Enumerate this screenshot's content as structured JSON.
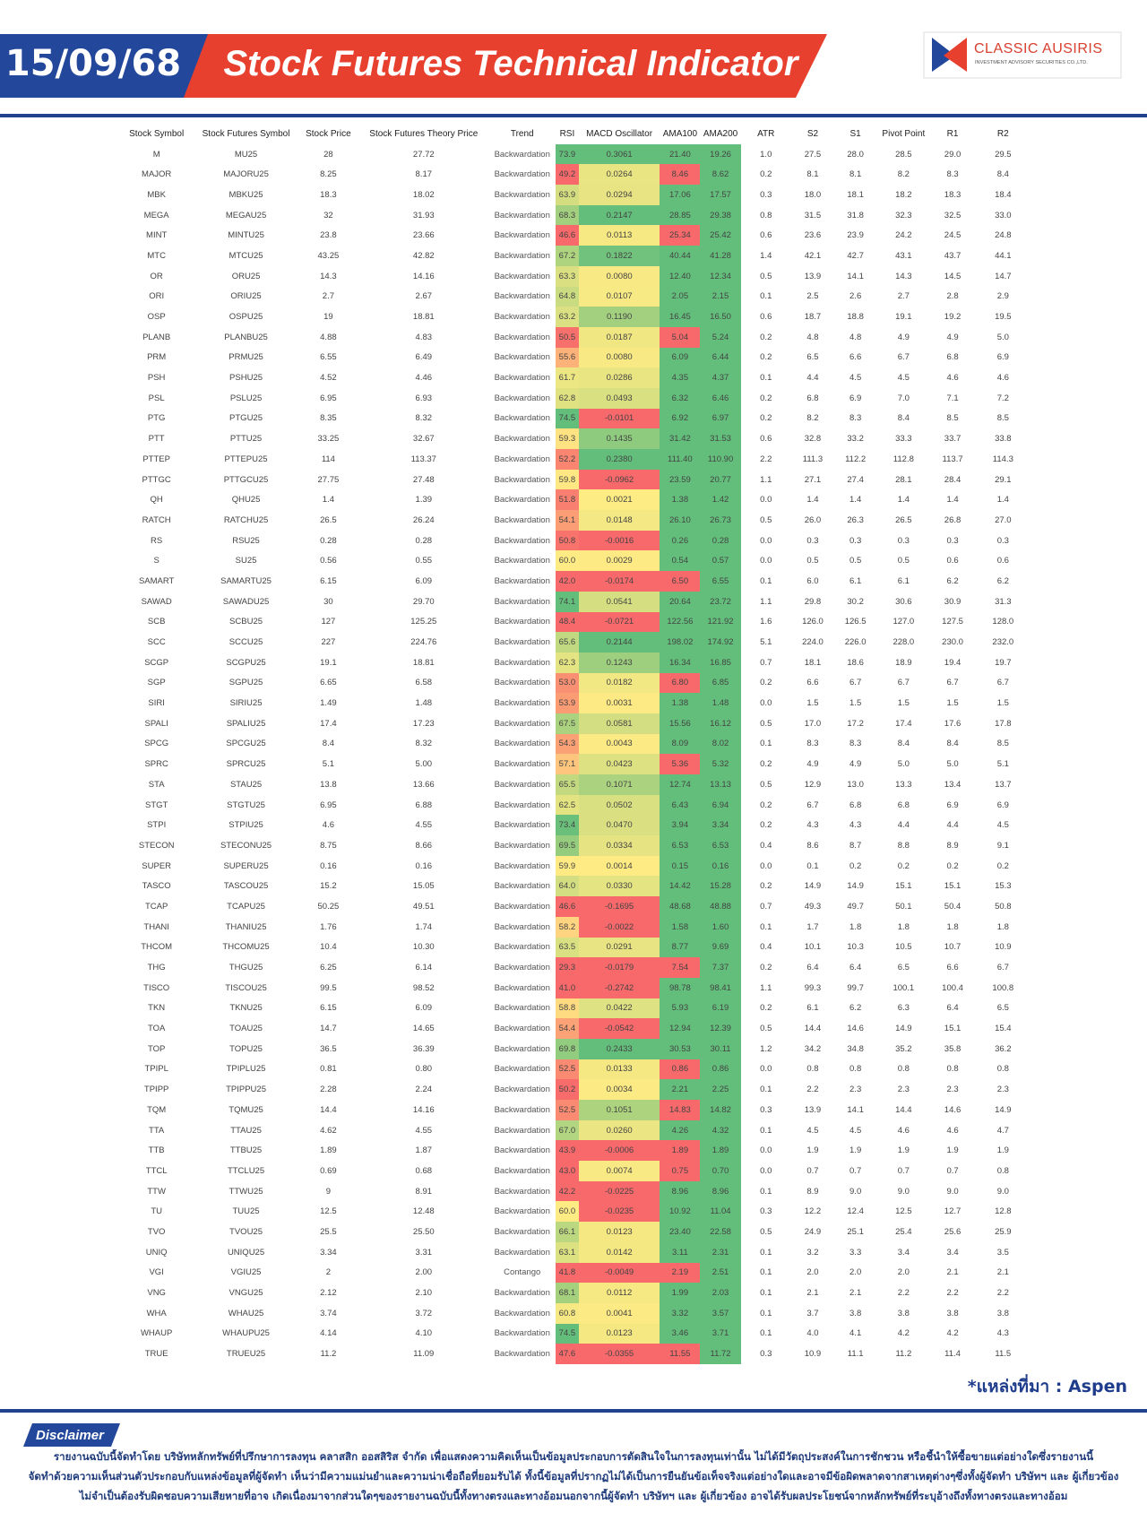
{
  "header": {
    "date": "15/09/68",
    "title": "Stock Futures Technical Indicator",
    "logo_name": "CLASSIC AUSIRIS",
    "logo_sub": "INVESTMENT ADVISORY SECURITIES CO.,LTD."
  },
  "table": {
    "columns": [
      "Stock Symbol",
      "Stock Futures Symbol",
      "Stock Price",
      "Stock Futures Theory Price",
      "Trend",
      "RSI",
      "MACD Oscillator",
      "AMA100",
      "AMA200",
      "ATR",
      "S2",
      "S1",
      "Pivot Point",
      "R1",
      "R2"
    ],
    "rows": [
      [
        "M",
        "MU25",
        "28",
        "27.72",
        "Backwardation",
        "73.9",
        "0.3061",
        "21.40",
        "19.26",
        "1.0",
        "27.5",
        "28.0",
        "28.5",
        "29.0",
        "29.5"
      ],
      [
        "MAJOR",
        "MAJORU25",
        "8.25",
        "8.17",
        "Backwardation",
        "49.2",
        "0.0264",
        "8.46",
        "8.62",
        "0.2",
        "8.1",
        "8.1",
        "8.2",
        "8.3",
        "8.4"
      ],
      [
        "MBK",
        "MBKU25",
        "18.3",
        "18.02",
        "Backwardation",
        "63.9",
        "0.0294",
        "17.06",
        "17.57",
        "0.3",
        "18.0",
        "18.1",
        "18.2",
        "18.3",
        "18.4"
      ],
      [
        "MEGA",
        "MEGAU25",
        "32",
        "31.93",
        "Backwardation",
        "68.3",
        "0.2147",
        "28.85",
        "29.38",
        "0.8",
        "31.5",
        "31.8",
        "32.3",
        "32.5",
        "33.0"
      ],
      [
        "MINT",
        "MINTU25",
        "23.8",
        "23.66",
        "Backwardation",
        "46.6",
        "0.0113",
        "25.34",
        "25.42",
        "0.6",
        "23.6",
        "23.9",
        "24.2",
        "24.5",
        "24.8"
      ],
      [
        "MTC",
        "MTCU25",
        "43.25",
        "42.82",
        "Backwardation",
        "67.2",
        "0.1822",
        "40.44",
        "41.28",
        "1.4",
        "42.1",
        "42.7",
        "43.1",
        "43.7",
        "44.1"
      ],
      [
        "OR",
        "ORU25",
        "14.3",
        "14.16",
        "Backwardation",
        "63.3",
        "0.0080",
        "12.40",
        "12.34",
        "0.5",
        "13.9",
        "14.1",
        "14.3",
        "14.5",
        "14.7"
      ],
      [
        "ORI",
        "ORIU25",
        "2.7",
        "2.67",
        "Backwardation",
        "64.8",
        "0.0107",
        "2.05",
        "2.15",
        "0.1",
        "2.5",
        "2.6",
        "2.7",
        "2.8",
        "2.9"
      ],
      [
        "OSP",
        "OSPU25",
        "19",
        "18.81",
        "Backwardation",
        "63.2",
        "0.1190",
        "16.45",
        "16.50",
        "0.6",
        "18.7",
        "18.8",
        "19.1",
        "19.2",
        "19.5"
      ],
      [
        "PLANB",
        "PLANBU25",
        "4.88",
        "4.83",
        "Backwardation",
        "50.5",
        "0.0187",
        "5.04",
        "5.24",
        "0.2",
        "4.8",
        "4.8",
        "4.9",
        "4.9",
        "5.0"
      ],
      [
        "PRM",
        "PRMU25",
        "6.55",
        "6.49",
        "Backwardation",
        "55.6",
        "0.0080",
        "6.09",
        "6.44",
        "0.2",
        "6.5",
        "6.6",
        "6.7",
        "6.8",
        "6.9"
      ],
      [
        "PSH",
        "PSHU25",
        "4.52",
        "4.46",
        "Backwardation",
        "61.7",
        "0.0286",
        "4.35",
        "4.37",
        "0.1",
        "4.4",
        "4.5",
        "4.5",
        "4.6",
        "4.6"
      ],
      [
        "PSL",
        "PSLU25",
        "6.95",
        "6.93",
        "Backwardation",
        "62.8",
        "0.0493",
        "6.32",
        "6.46",
        "0.2",
        "6.8",
        "6.9",
        "7.0",
        "7.1",
        "7.2"
      ],
      [
        "PTG",
        "PTGU25",
        "8.35",
        "8.32",
        "Backwardation",
        "74.5",
        "-0.0101",
        "6.92",
        "6.97",
        "0.2",
        "8.2",
        "8.3",
        "8.4",
        "8.5",
        "8.5"
      ],
      [
        "PTT",
        "PTTU25",
        "33.25",
        "32.67",
        "Backwardation",
        "59.3",
        "0.1435",
        "31.42",
        "31.53",
        "0.6",
        "32.8",
        "33.2",
        "33.3",
        "33.7",
        "33.8"
      ],
      [
        "PTTEP",
        "PTTEPU25",
        "114",
        "113.37",
        "Backwardation",
        "52.2",
        "0.2380",
        "111.40",
        "110.90",
        "2.2",
        "111.3",
        "112.2",
        "112.8",
        "113.7",
        "114.3"
      ],
      [
        "PTTGC",
        "PTTGCU25",
        "27.75",
        "27.48",
        "Backwardation",
        "59.8",
        "-0.0962",
        "23.59",
        "20.77",
        "1.1",
        "27.1",
        "27.4",
        "28.1",
        "28.4",
        "29.1"
      ],
      [
        "QH",
        "QHU25",
        "1.4",
        "1.39",
        "Backwardation",
        "51.8",
        "0.0021",
        "1.38",
        "1.42",
        "0.0",
        "1.4",
        "1.4",
        "1.4",
        "1.4",
        "1.4"
      ],
      [
        "RATCH",
        "RATCHU25",
        "26.5",
        "26.24",
        "Backwardation",
        "54.1",
        "0.0148",
        "26.10",
        "26.73",
        "0.5",
        "26.0",
        "26.3",
        "26.5",
        "26.8",
        "27.0"
      ],
      [
        "RS",
        "RSU25",
        "0.28",
        "0.28",
        "Backwardation",
        "50.8",
        "-0.0016",
        "0.26",
        "0.28",
        "0.0",
        "0.3",
        "0.3",
        "0.3",
        "0.3",
        "0.3"
      ],
      [
        "S",
        "SU25",
        "0.56",
        "0.55",
        "Backwardation",
        "60.0",
        "0.0029",
        "0.54",
        "0.57",
        "0.0",
        "0.5",
        "0.5",
        "0.5",
        "0.6",
        "0.6"
      ],
      [
        "SAMART",
        "SAMARTU25",
        "6.15",
        "6.09",
        "Backwardation",
        "42.0",
        "-0.0174",
        "6.50",
        "6.55",
        "0.1",
        "6.0",
        "6.1",
        "6.1",
        "6.2",
        "6.2"
      ],
      [
        "SAWAD",
        "SAWADU25",
        "30",
        "29.70",
        "Backwardation",
        "74.1",
        "0.0541",
        "20.64",
        "23.72",
        "1.1",
        "29.8",
        "30.2",
        "30.6",
        "30.9",
        "31.3"
      ],
      [
        "SCB",
        "SCBU25",
        "127",
        "125.25",
        "Backwardation",
        "48.4",
        "-0.0721",
        "122.56",
        "121.92",
        "1.6",
        "126.0",
        "126.5",
        "127.0",
        "127.5",
        "128.0"
      ],
      [
        "SCC",
        "SCCU25",
        "227",
        "224.76",
        "Backwardation",
        "65.6",
        "0.2144",
        "198.02",
        "174.92",
        "5.1",
        "224.0",
        "226.0",
        "228.0",
        "230.0",
        "232.0"
      ],
      [
        "SCGP",
        "SCGPU25",
        "19.1",
        "18.81",
        "Backwardation",
        "62.3",
        "0.1243",
        "16.34",
        "16.85",
        "0.7",
        "18.1",
        "18.6",
        "18.9",
        "19.4",
        "19.7"
      ],
      [
        "SGP",
        "SGPU25",
        "6.65",
        "6.58",
        "Backwardation",
        "53.0",
        "0.0182",
        "6.80",
        "6.85",
        "0.2",
        "6.6",
        "6.7",
        "6.7",
        "6.7",
        "6.7"
      ],
      [
        "SIRI",
        "SIRIU25",
        "1.49",
        "1.48",
        "Backwardation",
        "53.9",
        "0.0031",
        "1.38",
        "1.48",
        "0.0",
        "1.5",
        "1.5",
        "1.5",
        "1.5",
        "1.5"
      ],
      [
        "SPALI",
        "SPALIU25",
        "17.4",
        "17.23",
        "Backwardation",
        "67.5",
        "0.0581",
        "15.56",
        "16.12",
        "0.5",
        "17.0",
        "17.2",
        "17.4",
        "17.6",
        "17.8"
      ],
      [
        "SPCG",
        "SPCGU25",
        "8.4",
        "8.32",
        "Backwardation",
        "54.3",
        "0.0043",
        "8.09",
        "8.02",
        "0.1",
        "8.3",
        "8.3",
        "8.4",
        "8.4",
        "8.5"
      ],
      [
        "SPRC",
        "SPRCU25",
        "5.1",
        "5.00",
        "Backwardation",
        "57.1",
        "0.0423",
        "5.36",
        "5.32",
        "0.2",
        "4.9",
        "4.9",
        "5.0",
        "5.0",
        "5.1"
      ],
      [
        "STA",
        "STAU25",
        "13.8",
        "13.66",
        "Backwardation",
        "65.5",
        "0.1071",
        "12.74",
        "13.13",
        "0.5",
        "12.9",
        "13.0",
        "13.3",
        "13.4",
        "13.7"
      ],
      [
        "STGT",
        "STGTU25",
        "6.95",
        "6.88",
        "Backwardation",
        "62.5",
        "0.0502",
        "6.43",
        "6.94",
        "0.2",
        "6.7",
        "6.8",
        "6.8",
        "6.9",
        "6.9"
      ],
      [
        "STPI",
        "STPIU25",
        "4.6",
        "4.55",
        "Backwardation",
        "73.4",
        "0.0470",
        "3.94",
        "3.34",
        "0.2",
        "4.3",
        "4.3",
        "4.4",
        "4.4",
        "4.5"
      ],
      [
        "STECON",
        "STECONU25",
        "8.75",
        "8.66",
        "Backwardation",
        "69.5",
        "0.0334",
        "6.53",
        "6.53",
        "0.4",
        "8.6",
        "8.7",
        "8.8",
        "8.9",
        "9.1"
      ],
      [
        "SUPER",
        "SUPERU25",
        "0.16",
        "0.16",
        "Backwardation",
        "59.9",
        "0.0014",
        "0.15",
        "0.16",
        "0.0",
        "0.1",
        "0.2",
        "0.2",
        "0.2",
        "0.2"
      ],
      [
        "TASCO",
        "TASCOU25",
        "15.2",
        "15.05",
        "Backwardation",
        "64.0",
        "0.0330",
        "14.42",
        "15.28",
        "0.2",
        "14.9",
        "14.9",
        "15.1",
        "15.1",
        "15.3"
      ],
      [
        "TCAP",
        "TCAPU25",
        "50.25",
        "49.51",
        "Backwardation",
        "46.6",
        "-0.1695",
        "48.68",
        "48.88",
        "0.7",
        "49.3",
        "49.7",
        "50.1",
        "50.4",
        "50.8"
      ],
      [
        "THANI",
        "THANIU25",
        "1.76",
        "1.74",
        "Backwardation",
        "58.2",
        "-0.0022",
        "1.58",
        "1.60",
        "0.1",
        "1.7",
        "1.8",
        "1.8",
        "1.8",
        "1.8"
      ],
      [
        "THCOM",
        "THCOMU25",
        "10.4",
        "10.30",
        "Backwardation",
        "63.5",
        "0.0291",
        "8.77",
        "9.69",
        "0.4",
        "10.1",
        "10.3",
        "10.5",
        "10.7",
        "10.9"
      ],
      [
        "THG",
        "THGU25",
        "6.25",
        "6.14",
        "Backwardation",
        "29.3",
        "-0.0179",
        "7.54",
        "7.37",
        "0.2",
        "6.4",
        "6.4",
        "6.5",
        "6.6",
        "6.7"
      ],
      [
        "TISCO",
        "TISCOU25",
        "99.5",
        "98.52",
        "Backwardation",
        "41.0",
        "-0.2742",
        "98.78",
        "98.41",
        "1.1",
        "99.3",
        "99.7",
        "100.1",
        "100.4",
        "100.8"
      ],
      [
        "TKN",
        "TKNU25",
        "6.15",
        "6.09",
        "Backwardation",
        "58.8",
        "0.0422",
        "5.93",
        "6.19",
        "0.2",
        "6.1",
        "6.2",
        "6.3",
        "6.4",
        "6.5"
      ],
      [
        "TOA",
        "TOAU25",
        "14.7",
        "14.65",
        "Backwardation",
        "54.4",
        "-0.0542",
        "12.94",
        "12.39",
        "0.5",
        "14.4",
        "14.6",
        "14.9",
        "15.1",
        "15.4"
      ],
      [
        "TOP",
        "TOPU25",
        "36.5",
        "36.39",
        "Backwardation",
        "69.8",
        "0.2433",
        "30.53",
        "30.11",
        "1.2",
        "34.2",
        "34.8",
        "35.2",
        "35.8",
        "36.2"
      ],
      [
        "TPIPL",
        "TPIPLU25",
        "0.81",
        "0.80",
        "Backwardation",
        "52.5",
        "0.0133",
        "0.86",
        "0.86",
        "0.0",
        "0.8",
        "0.8",
        "0.8",
        "0.8",
        "0.8"
      ],
      [
        "TPIPP",
        "TPIPPU25",
        "2.28",
        "2.24",
        "Backwardation",
        "50.2",
        "0.0034",
        "2.21",
        "2.25",
        "0.1",
        "2.2",
        "2.3",
        "2.3",
        "2.3",
        "2.3"
      ],
      [
        "TQM",
        "TQMU25",
        "14.4",
        "14.16",
        "Backwardation",
        "52.5",
        "0.1051",
        "14.83",
        "14.82",
        "0.3",
        "13.9",
        "14.1",
        "14.4",
        "14.6",
        "14.9"
      ],
      [
        "TTA",
        "TTAU25",
        "4.62",
        "4.55",
        "Backwardation",
        "67.0",
        "0.0260",
        "4.26",
        "4.32",
        "0.1",
        "4.5",
        "4.5",
        "4.6",
        "4.6",
        "4.7"
      ],
      [
        "TTB",
        "TTBU25",
        "1.89",
        "1.87",
        "Backwardation",
        "43.9",
        "-0.0006",
        "1.89",
        "1.89",
        "0.0",
        "1.9",
        "1.9",
        "1.9",
        "1.9",
        "1.9"
      ],
      [
        "TTCL",
        "TTCLU25",
        "0.69",
        "0.68",
        "Backwardation",
        "43.0",
        "0.0074",
        "0.75",
        "0.70",
        "0.0",
        "0.7",
        "0.7",
        "0.7",
        "0.7",
        "0.8"
      ],
      [
        "TTW",
        "TTWU25",
        "9",
        "8.91",
        "Backwardation",
        "42.2",
        "-0.0225",
        "8.96",
        "8.96",
        "0.1",
        "8.9",
        "9.0",
        "9.0",
        "9.0",
        "9.0"
      ],
      [
        "TU",
        "TUU25",
        "12.5",
        "12.48",
        "Backwardation",
        "60.0",
        "-0.0235",
        "10.92",
        "11.04",
        "0.3",
        "12.2",
        "12.4",
        "12.5",
        "12.7",
        "12.8"
      ],
      [
        "TVO",
        "TVOU25",
        "25.5",
        "25.50",
        "Backwardation",
        "66.1",
        "0.0123",
        "23.40",
        "22.58",
        "0.5",
        "24.9",
        "25.1",
        "25.4",
        "25.6",
        "25.9"
      ],
      [
        "UNIQ",
        "UNIQU25",
        "3.34",
        "3.31",
        "Backwardation",
        "63.1",
        "0.0142",
        "3.11",
        "2.31",
        "0.1",
        "3.2",
        "3.3",
        "3.4",
        "3.4",
        "3.5"
      ],
      [
        "VGI",
        "VGIU25",
        "2",
        "2.00",
        "Contango",
        "41.8",
        "-0.0049",
        "2.19",
        "2.51",
        "0.1",
        "2.0",
        "2.0",
        "2.0",
        "2.1",
        "2.1"
      ],
      [
        "VNG",
        "VNGU25",
        "2.12",
        "2.10",
        "Backwardation",
        "68.1",
        "0.0112",
        "1.99",
        "2.03",
        "0.1",
        "2.1",
        "2.1",
        "2.2",
        "2.2",
        "2.2"
      ],
      [
        "WHA",
        "WHAU25",
        "3.74",
        "3.72",
        "Backwardation",
        "60.8",
        "0.0041",
        "3.32",
        "3.57",
        "0.1",
        "3.7",
        "3.8",
        "3.8",
        "3.8",
        "3.8"
      ],
      [
        "WHAUP",
        "WHAUPU25",
        "4.14",
        "4.10",
        "Backwardation",
        "74.5",
        "0.0123",
        "3.46",
        "3.71",
        "0.1",
        "4.0",
        "4.1",
        "4.2",
        "4.2",
        "4.3"
      ],
      [
        "TRUE",
        "TRUEU25",
        "11.2",
        "11.09",
        "Backwardation",
        "47.6",
        "-0.0355",
        "11.55",
        "11.72",
        "0.3",
        "10.9",
        "11.1",
        "11.2",
        "11.4",
        "11.5"
      ]
    ]
  },
  "source": "*แหล่งที่มา : Aspen",
  "disclaimer": {
    "title": "Disclaimer",
    "lines": [
      "รายงานฉบับนี้จัดทำโดย บริษัทหลักทรัพย์ที่ปรึกษาการลงทุน คลาสสิก ออสสิริส จำกัด เพื่อแสดงความคิดเห็นเป็นข้อมูลประกอบการตัดสินใจในการลงทุนเท่านั้น ไม่ได้มีวัตถุประสงค์ในการชักชวน หรือชี้นำให้ซื้อขายแต่อย่างใดซึ่งรายงานนี้",
      "จัดทำด้วยความเห็นส่วนตัวประกอบกับแหล่งข้อมูลที่ผู้จัดทำ เห็นว่ามีความแม่นยำและความน่าเชื่อถือที่ยอมรับได้ ทั้งนี้ข้อมูลที่ปรากฏไม่ได้เป็นการยืนยันข้อเท็จจริงแต่อย่างใดและอาจมีข้อผิดพลาดจากสาเหตุต่างๆซึ่งทั้งผู้จัดทำ บริษัทฯ และ ผู้เกี่ยวข้อง",
      "ไม่จำเป็นต้องรับผิดชอบความเสียหายที่อาจ เกิดเนื่องมาจากส่วนใดๆของรายงานฉบับนี้ทั้งทางตรงและทางอ้อมนอกจากนี้ผู้จัดทำ บริษัทฯ และ ผู้เกี่ยวข้อง อาจได้รับผลประโยชน์จากหลักทรัพย์ที่ระบุอ้างถึงทั้งทางตรงและทางอ้อม"
    ]
  }
}
